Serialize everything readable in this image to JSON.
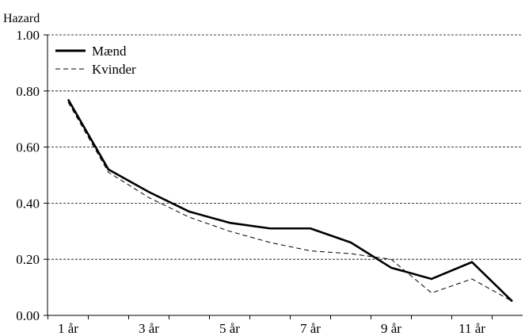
{
  "chart_data": {
    "type": "line",
    "title": "",
    "xlabel": "",
    "ylabel": "Hazard",
    "ylim": [
      0,
      1
    ],
    "yticks": [
      "0.00",
      "0.20",
      "0.40",
      "0.60",
      "0.80",
      "1.00"
    ],
    "x": [
      1,
      2,
      3,
      4,
      5,
      6,
      7,
      8,
      9,
      10,
      11,
      12
    ],
    "xtick_labels": [
      "1 år",
      "",
      "3 år",
      "",
      "5 år",
      "",
      "7 år",
      "",
      "9 år",
      "",
      "11 år",
      ""
    ],
    "grid": "horizontal-dashed",
    "legend_placement": "top-left",
    "series": [
      {
        "name": "Mænd",
        "style": "solid",
        "color": "#000000",
        "values": [
          0.77,
          0.52,
          0.44,
          0.37,
          0.33,
          0.31,
          0.31,
          0.26,
          0.17,
          0.13,
          0.19,
          0.05
        ]
      },
      {
        "name": "Kvinder",
        "style": "dashed",
        "color": "#000000",
        "values": [
          0.76,
          0.51,
          0.42,
          0.35,
          0.3,
          0.26,
          0.23,
          0.22,
          0.2,
          0.08,
          0.13,
          0.05
        ]
      }
    ]
  }
}
